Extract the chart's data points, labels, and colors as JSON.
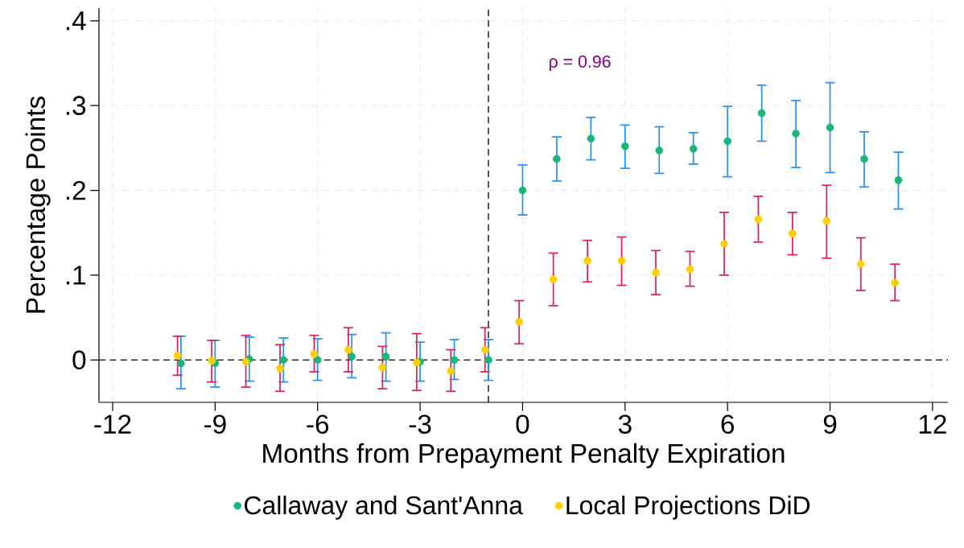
{
  "chart_data": {
    "type": "scatter",
    "xlabel": "Months from Prepayment Penalty Expiration",
    "ylabel": "Percentage Points",
    "annotations": [
      "ρ = 0.96"
    ],
    "xlim": [
      -12.4,
      12.45
    ],
    "ylim": [
      -0.05,
      0.415
    ],
    "xticks": [
      -12,
      -9,
      -6,
      -3,
      0,
      3,
      6,
      9,
      12
    ],
    "yticks": [
      0,
      {
        "value": 0.1,
        "label": ".1"
      },
      {
        "value": 0.2,
        "label": ".2"
      },
      {
        "value": 0.3,
        "label": ".3"
      },
      {
        "value": 0.4,
        "label": ".4"
      }
    ],
    "grid": true,
    "legend": "bottom",
    "marker": "circle",
    "ref_lines": [
      {
        "axis": "x",
        "value": -1,
        "color": "#000000",
        "line_style": "dashed"
      },
      {
        "axis": "y",
        "value": 0,
        "color": "#000000",
        "line_style": "dashed"
      }
    ],
    "series": [
      {
        "name": "Callaway and Sant'Anna",
        "color": "#1bb57a",
        "x": [
          -10,
          -9,
          -8,
          -7,
          -6,
          -5,
          -4,
          -3,
          -2,
          -1,
          0,
          1,
          2,
          3,
          4,
          5,
          6,
          7,
          8,
          9,
          10,
          11
        ],
        "values": [
          -0.004,
          -0.004,
          0.001,
          0.0,
          0.0,
          0.004,
          0.004,
          -0.002,
          0.0,
          0.0,
          0.2,
          0.237,
          0.261,
          0.252,
          0.247,
          0.249,
          0.258,
          0.291,
          0.267,
          0.274,
          0.237,
          0.212
        ],
        "errors": [
          [
            -0.034,
            0.028
          ],
          [
            -0.032,
            0.023
          ],
          [
            -0.025,
            0.027
          ],
          [
            -0.026,
            0.026
          ],
          [
            -0.024,
            0.025
          ],
          [
            -0.021,
            0.03
          ],
          [
            -0.025,
            0.032
          ],
          [
            -0.025,
            0.021
          ],
          [
            -0.023,
            0.024
          ],
          [
            -0.024,
            0.024
          ],
          [
            0.171,
            0.23
          ],
          [
            0.211,
            0.263
          ],
          [
            0.236,
            0.286
          ],
          [
            0.226,
            0.277
          ],
          [
            0.22,
            0.275
          ],
          [
            0.231,
            0.268
          ],
          [
            0.216,
            0.299
          ],
          [
            0.258,
            0.324
          ],
          [
            0.227,
            0.306
          ],
          [
            0.221,
            0.327
          ],
          [
            0.204,
            0.269
          ],
          [
            0.178,
            0.245
          ]
        ]
      },
      {
        "name": "Local Projections DiD",
        "color": "#fdd000",
        "x": [
          -10.1,
          -9.1,
          -8.1,
          -7.1,
          -6.1,
          -5.1,
          -4.1,
          -3.1,
          -2.1,
          -1.1,
          -0.1,
          0.9,
          1.9,
          2.9,
          3.9,
          4.9,
          5.9,
          6.9,
          7.9,
          8.9,
          9.9,
          10.9
        ],
        "values": [
          0.005,
          -0.001,
          -0.002,
          -0.01,
          0.007,
          0.012,
          -0.009,
          -0.003,
          -0.013,
          0.012,
          0.045,
          0.095,
          0.117,
          0.117,
          0.103,
          0.107,
          0.137,
          0.166,
          0.149,
          0.164,
          0.113,
          0.091
        ],
        "errors": [
          [
            -0.018,
            0.028
          ],
          [
            -0.026,
            0.023
          ],
          [
            -0.032,
            0.029
          ],
          [
            -0.037,
            0.018
          ],
          [
            -0.014,
            0.029
          ],
          [
            -0.014,
            0.038
          ],
          [
            -0.034,
            0.016
          ],
          [
            -0.036,
            0.031
          ],
          [
            -0.037,
            0.012
          ],
          [
            -0.014,
            0.038
          ],
          [
            0.019,
            0.07
          ],
          [
            0.064,
            0.126
          ],
          [
            0.092,
            0.141
          ],
          [
            0.088,
            0.145
          ],
          [
            0.077,
            0.129
          ],
          [
            0.087,
            0.128
          ],
          [
            0.1,
            0.174
          ],
          [
            0.139,
            0.193
          ],
          [
            0.124,
            0.174
          ],
          [
            0.12,
            0.206
          ],
          [
            0.082,
            0.144
          ],
          [
            0.07,
            0.113
          ]
        ]
      }
    ]
  }
}
